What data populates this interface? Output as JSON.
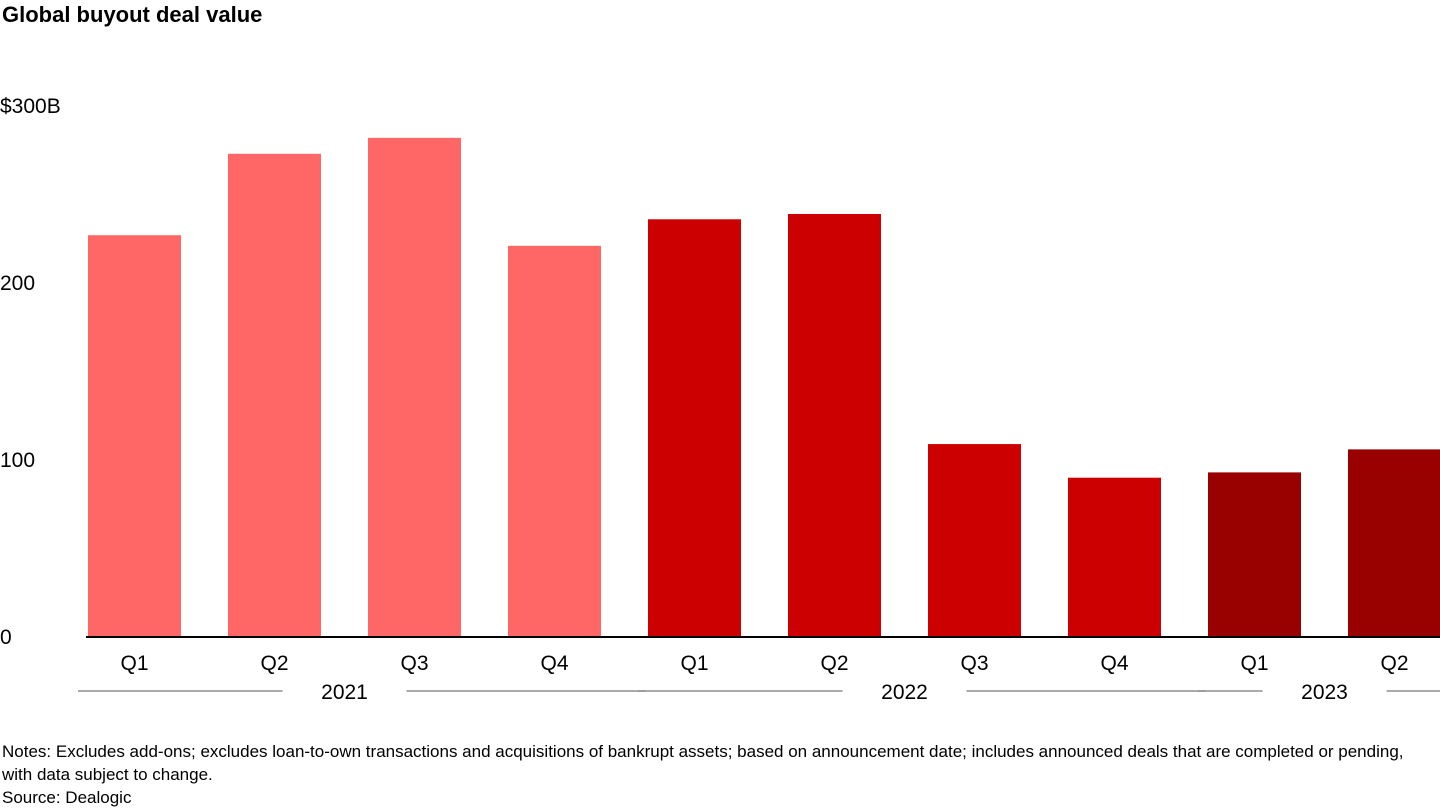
{
  "chart_data": {
    "type": "bar",
    "title": "Global buyout deal value",
    "unit": "$B",
    "ylim": [
      0,
      300
    ],
    "yticks": [
      {
        "value": 0,
        "label": "0"
      },
      {
        "value": 100,
        "label": "100"
      },
      {
        "value": 200,
        "label": "200"
      },
      {
        "value": 300,
        "label": "$300B"
      }
    ],
    "categories": [
      "Q1",
      "Q2",
      "Q3",
      "Q4",
      "Q1",
      "Q2",
      "Q3",
      "Q4",
      "Q1",
      "Q2"
    ],
    "years": [
      "2021",
      "2021",
      "2021",
      "2021",
      "2022",
      "2022",
      "2022",
      "2022",
      "2023",
      "2023"
    ],
    "values": [
      227,
      273,
      282,
      221,
      236,
      239,
      109,
      90,
      93,
      106
    ],
    "year_groups": [
      {
        "label": "2021",
        "start": 0,
        "end": 3
      },
      {
        "label": "2022",
        "start": 4,
        "end": 7
      },
      {
        "label": "2023",
        "start": 8,
        "end": 9
      }
    ],
    "colors": {
      "2021": "#ff6666",
      "2022": "#cc0000",
      "2023": "#990000"
    },
    "grid": false,
    "legend": "none"
  },
  "notes": "Notes: Excludes add-ons; excludes loan-to-own transactions and acquisitions of bankrupt assets; based on announcement date; includes announced deals that are completed or pending, with data subject to change.",
  "source": "Source: Dealogic"
}
